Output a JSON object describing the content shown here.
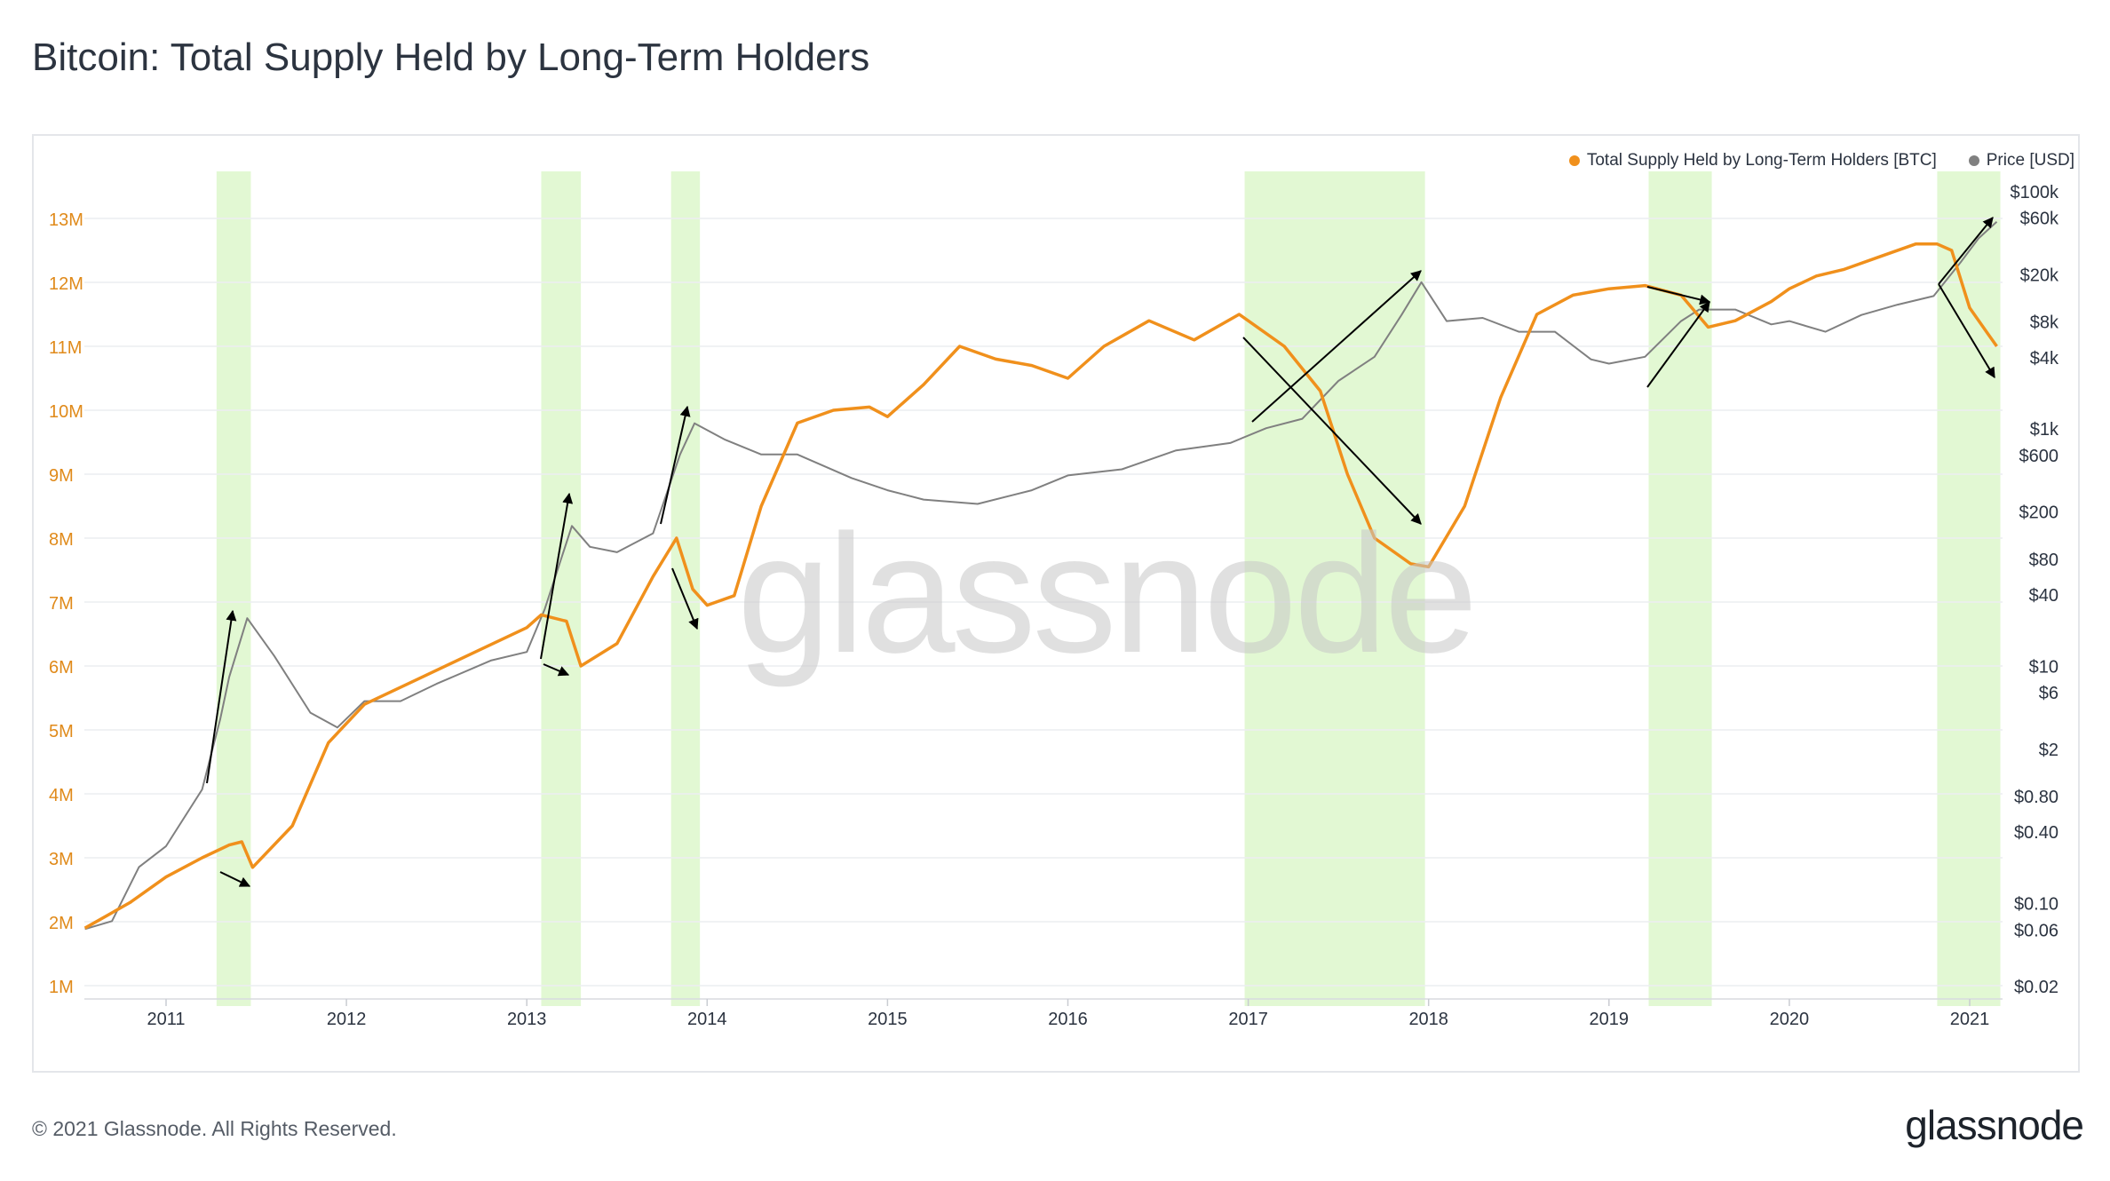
{
  "header": {
    "title": "Bitcoin: Total Supply Held by Long-Term Holders"
  },
  "watermark": "glassnode",
  "footer": {
    "copyright": "© 2021 Glassnode. All Rights Reserved.",
    "logo": "glassnode"
  },
  "legend": [
    {
      "label": "Total Supply Held by Long-Term Holders [BTC]",
      "color": "#f0901c"
    },
    {
      "label": "Price [USD]",
      "color": "#808080"
    }
  ],
  "chart_data": {
    "type": "line",
    "left_axis": {
      "ticks": [
        "1M",
        "2M",
        "3M",
        "4M",
        "5M",
        "6M",
        "7M",
        "8M",
        "9M",
        "10M",
        "11M",
        "12M",
        "13M"
      ],
      "color": "#e08a1a"
    },
    "right_axis": {
      "scale": "log",
      "ticks": [
        "$0.02",
        "$0.06",
        "$0.10",
        "$0.40",
        "$0.80",
        "$2",
        "$6",
        "$10",
        "$40",
        "$80",
        "$200",
        "$600",
        "$1k",
        "$4k",
        "$8k",
        "$20k",
        "$60k",
        "$100k"
      ]
    },
    "x_axis": {
      "ticks": [
        "2011",
        "2012",
        "2013",
        "2014",
        "2015",
        "2016",
        "2017",
        "2018",
        "2019",
        "2020",
        "2021"
      ]
    },
    "highlight_bands": [
      {
        "start": 2011.28,
        "end": 2011.47
      },
      {
        "start": 2013.08,
        "end": 2013.3
      },
      {
        "start": 2013.8,
        "end": 2013.96
      },
      {
        "start": 2016.98,
        "end": 2017.98
      },
      {
        "start": 2019.22,
        "end": 2019.57
      },
      {
        "start": 2020.82,
        "end": 2021.17
      }
    ],
    "series": [
      {
        "name": "Total Supply Held by Long-Term Holders [BTC]",
        "unit": "M BTC",
        "color": "#f0901c",
        "x": [
          2010.55,
          2010.8,
          2011.0,
          2011.2,
          2011.35,
          2011.42,
          2011.48,
          2011.7,
          2011.9,
          2012.1,
          2012.4,
          2012.7,
          2013.0,
          2013.08,
          2013.22,
          2013.3,
          2013.5,
          2013.7,
          2013.83,
          2013.92,
          2014.0,
          2014.15,
          2014.3,
          2014.5,
          2014.7,
          2014.9,
          2015.0,
          2015.2,
          2015.4,
          2015.6,
          2015.8,
          2016.0,
          2016.2,
          2016.45,
          2016.7,
          2016.95,
          2017.05,
          2017.2,
          2017.4,
          2017.55,
          2017.7,
          2017.9,
          2018.0,
          2018.2,
          2018.4,
          2018.6,
          2018.8,
          2019.0,
          2019.2,
          2019.4,
          2019.55,
          2019.7,
          2019.9,
          2020.0,
          2020.15,
          2020.3,
          2020.5,
          2020.7,
          2020.82,
          2020.9,
          2021.0,
          2021.1,
          2021.15
        ],
        "values": [
          1.9,
          2.3,
          2.7,
          3.0,
          3.2,
          3.25,
          2.85,
          3.5,
          4.8,
          5.4,
          5.8,
          6.2,
          6.6,
          6.8,
          6.7,
          6.0,
          6.35,
          7.4,
          8.0,
          7.2,
          6.95,
          7.1,
          8.5,
          9.8,
          10.0,
          10.05,
          9.9,
          10.4,
          11.0,
          10.8,
          10.7,
          10.5,
          11.0,
          11.4,
          11.1,
          11.5,
          11.3,
          11.0,
          10.3,
          9.0,
          8.0,
          7.6,
          7.55,
          8.5,
          10.2,
          11.5,
          11.8,
          11.9,
          11.95,
          11.8,
          11.3,
          11.4,
          11.7,
          11.9,
          12.1,
          12.2,
          12.4,
          12.6,
          12.6,
          12.5,
          11.6,
          11.2,
          11.0
        ]
      },
      {
        "name": "Price [USD]",
        "color": "#808080",
        "x": [
          2010.55,
          2010.7,
          2010.85,
          2011.0,
          2011.2,
          2011.3,
          2011.35,
          2011.45,
          2011.6,
          2011.8,
          2011.95,
          2012.1,
          2012.3,
          2012.5,
          2012.8,
          2013.0,
          2013.1,
          2013.25,
          2013.35,
          2013.5,
          2013.7,
          2013.85,
          2013.93,
          2014.1,
          2014.3,
          2014.5,
          2014.8,
          2015.0,
          2015.2,
          2015.5,
          2015.8,
          2016.0,
          2016.3,
          2016.6,
          2016.9,
          2017.1,
          2017.3,
          2017.5,
          2017.7,
          2017.85,
          2017.96,
          2018.1,
          2018.3,
          2018.5,
          2018.7,
          2018.9,
          2019.0,
          2019.2,
          2019.4,
          2019.5,
          2019.7,
          2019.9,
          2020.0,
          2020.2,
          2020.4,
          2020.6,
          2020.8,
          2020.95,
          2021.05,
          2021.15
        ],
        "values": [
          0.06,
          0.07,
          0.2,
          0.3,
          0.9,
          3.5,
          8,
          25,
          12,
          4,
          3,
          5,
          5,
          7,
          11,
          13,
          30,
          150,
          100,
          90,
          130,
          600,
          1100,
          800,
          600,
          600,
          380,
          300,
          250,
          230,
          300,
          400,
          450,
          650,
          750,
          1000,
          1200,
          2500,
          4000,
          9000,
          17000,
          8000,
          8500,
          6500,
          6500,
          3800,
          3500,
          4000,
          8000,
          10000,
          10000,
          7500,
          8000,
          6500,
          9000,
          11000,
          13000,
          25000,
          40000,
          55000
        ]
      }
    ]
  }
}
